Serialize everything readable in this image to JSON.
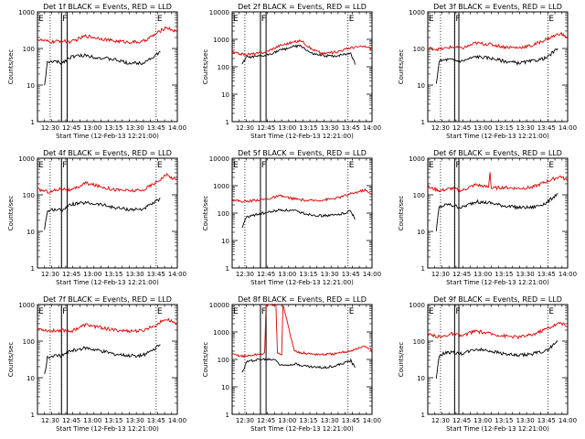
{
  "chart_data": [
    {
      "type": "line",
      "title": "Det 1f BLACK = Events, RED = LLD",
      "xlabel": "Start Time (12-Feb-13 12:21:00)",
      "ylabel": "Counts/sec",
      "yscale": "log",
      "ylim": [
        1,
        1000
      ],
      "ytick_labels": [
        "1",
        "10",
        "100",
        "1000"
      ],
      "xlim": [
        "12:21",
        "14:00"
      ],
      "xtick_labels": [
        "12:30",
        "12:45",
        "13:00",
        "13:15",
        "13:30",
        "13:45",
        "14:00"
      ],
      "region_labels": [
        {
          "text": "E",
          "t": "12:21"
        },
        {
          "text": "F",
          "t": "12:38"
        },
        {
          "text": "E",
          "t": "13:45"
        }
      ],
      "dotted_lines": [
        "12:30",
        "12:38",
        "13:45"
      ],
      "solid_lines": [
        "12:38",
        "12:42"
      ],
      "series": [
        {
          "color": "#000000",
          "t": [
            "12:26",
            "12:28",
            "12:32",
            "12:38",
            "12:45",
            "12:55",
            "13:05",
            "13:15",
            "13:25",
            "13:35",
            "13:42",
            "13:48"
          ],
          "y": [
            10,
            40,
            45,
            40,
            60,
            65,
            55,
            50,
            40,
            40,
            55,
            80
          ]
        },
        {
          "color": "#dd0000",
          "t": [
            "12:21",
            "12:30",
            "12:38",
            "12:45",
            "12:55",
            "13:05",
            "13:15",
            "13:25",
            "13:35",
            "13:45",
            "13:52",
            "14:00"
          ],
          "y": [
            175,
            150,
            160,
            150,
            220,
            190,
            160,
            150,
            150,
            250,
            380,
            280
          ]
        }
      ]
    },
    {
      "type": "line",
      "title": "Det 2f BLACK = Events, RED = LLD",
      "xlabel": "Start Time (12-Feb-13 12:21:00)",
      "ylabel": "Counts/sec",
      "yscale": "log",
      "ylim": [
        1,
        10000
      ],
      "ytick_labels": [
        "1",
        "10",
        "100",
        "1000",
        "10000"
      ],
      "xlim": [
        "12:21",
        "14:00"
      ],
      "xtick_labels": [
        "12:30",
        "12:45",
        "13:00",
        "13:15",
        "13:30",
        "13:45",
        "14:00"
      ],
      "region_labels": [
        {
          "text": "E",
          "t": "12:21"
        },
        {
          "text": "F",
          "t": "12:41"
        },
        {
          "text": "E",
          "t": "13:43"
        }
      ],
      "dotted_lines": [
        "12:30",
        "12:41",
        "13:43"
      ],
      "solid_lines": [
        "12:41",
        "12:45"
      ],
      "series": [
        {
          "color": "#000000",
          "t": [
            "12:28",
            "12:31",
            "12:38",
            "12:44",
            "12:55",
            "13:05",
            "13:10",
            "13:17",
            "13:25",
            "13:35",
            "13:45",
            "13:48"
          ],
          "y": [
            120,
            220,
            230,
            250,
            400,
            550,
            570,
            300,
            250,
            250,
            320,
            120
          ]
        },
        {
          "color": "#dd0000",
          "t": [
            "12:21",
            "12:30",
            "12:38",
            "12:45",
            "12:55",
            "13:05",
            "13:10",
            "13:17",
            "13:25",
            "13:35",
            "13:45",
            "13:55",
            "14:00"
          ],
          "y": [
            330,
            280,
            300,
            350,
            600,
            800,
            900,
            450,
            300,
            350,
            500,
            550,
            450
          ]
        }
      ]
    },
    {
      "type": "line",
      "title": "Det 3f BLACK = Events, RED = LLD",
      "xlabel": "Start Time (12-Feb-13 12:21:00)",
      "ylabel": "Counts/sec",
      "yscale": "log",
      "ylim": [
        1,
        1000
      ],
      "ytick_labels": [
        "1",
        "10",
        "100",
        "1000"
      ],
      "xlim": [
        "12:21",
        "14:00"
      ],
      "xtick_labels": [
        "12:30",
        "12:45",
        "13:00",
        "13:15",
        "13:30",
        "13:45",
        "14:00"
      ],
      "region_labels": [
        {
          "text": "E",
          "t": "12:21"
        },
        {
          "text": "F",
          "t": "12:40"
        },
        {
          "text": "E",
          "t": "13:46"
        }
      ],
      "dotted_lines": [
        "12:30",
        "12:40",
        "13:46"
      ],
      "solid_lines": [
        "12:40",
        "12:43"
      ],
      "series": [
        {
          "color": "#000000",
          "t": [
            "12:27",
            "12:29",
            "12:35",
            "12:45",
            "12:55",
            "13:05",
            "13:15",
            "13:25",
            "13:35",
            "13:45",
            "13:53"
          ],
          "y": [
            10,
            45,
            50,
            45,
            60,
            55,
            45,
            40,
            45,
            55,
            100
          ]
        },
        {
          "color": "#dd0000",
          "t": [
            "12:21",
            "12:30",
            "12:38",
            "12:45",
            "12:55",
            "13:05",
            "13:15",
            "13:25",
            "13:35",
            "13:45",
            "13:55",
            "14:00"
          ],
          "y": [
            100,
            95,
            110,
            100,
            140,
            130,
            110,
            105,
            120,
            180,
            260,
            190
          ]
        }
      ]
    },
    {
      "type": "line",
      "title": "Det 4f BLACK = Events, RED = LLD",
      "xlabel": "Start Time (12-Feb-13 12:21:00)",
      "ylabel": "Counts/sec",
      "yscale": "log",
      "ylim": [
        1,
        1000
      ],
      "ytick_labels": [
        "1",
        "10",
        "100",
        "1000"
      ],
      "xlim": [
        "12:21",
        "14:00"
      ],
      "xtick_labels": [
        "12:30",
        "12:45",
        "13:00",
        "13:15",
        "13:30",
        "13:45",
        "14:00"
      ],
      "region_labels": [
        {
          "text": "E",
          "t": "12:21"
        },
        {
          "text": "F",
          "t": "12:38"
        },
        {
          "text": "E",
          "t": "13:45"
        }
      ],
      "dotted_lines": [
        "12:30",
        "12:38",
        "13:45"
      ],
      "solid_lines": [
        "12:38",
        "12:42"
      ],
      "series": [
        {
          "color": "#000000",
          "t": [
            "12:26",
            "12:28",
            "12:32",
            "12:38",
            "12:45",
            "12:55",
            "13:05",
            "13:15",
            "13:25",
            "13:35",
            "13:42",
            "13:48"
          ],
          "y": [
            12,
            35,
            40,
            38,
            55,
            60,
            55,
            45,
            40,
            40,
            55,
            80
          ]
        },
        {
          "color": "#dd0000",
          "t": [
            "12:21",
            "12:30",
            "12:38",
            "12:45",
            "12:55",
            "13:05",
            "13:15",
            "13:25",
            "13:35",
            "13:45",
            "13:52",
            "14:00"
          ],
          "y": [
            140,
            120,
            150,
            130,
            210,
            170,
            140,
            130,
            130,
            220,
            350,
            250
          ]
        }
      ]
    },
    {
      "type": "line",
      "title": "Det 5f BLACK = Events, RED = LLD",
      "xlabel": "Start Time (12-Feb-13 12:21:00)",
      "ylabel": "Counts/sec",
      "yscale": "log",
      "ylim": [
        1,
        10000
      ],
      "ytick_labels": [
        "1",
        "10",
        "100",
        "1000",
        "10000"
      ],
      "xlim": [
        "12:21",
        "14:00"
      ],
      "xtick_labels": [
        "12:30",
        "12:45",
        "13:00",
        "13:15",
        "13:30",
        "13:45",
        "14:00"
      ],
      "region_labels": [
        {
          "text": "E",
          "t": "12:21"
        },
        {
          "text": "F",
          "t": "12:41"
        },
        {
          "text": "E",
          "t": "13:43"
        }
      ],
      "dotted_lines": [
        "12:30",
        "12:41",
        "13:43"
      ],
      "solid_lines": [
        "12:41",
        "12:45"
      ],
      "series": [
        {
          "color": "#000000",
          "t": [
            "12:28",
            "12:31",
            "12:38",
            "12:44",
            "12:55",
            "13:05",
            "13:15",
            "13:25",
            "13:35",
            "13:45",
            "13:48"
          ],
          "y": [
            30,
            70,
            90,
            100,
            130,
            120,
            90,
            80,
            85,
            120,
            60
          ]
        },
        {
          "color": "#dd0000",
          "t": [
            "12:21",
            "12:30",
            "12:38",
            "12:45",
            "12:55",
            "13:05",
            "13:15",
            "13:25",
            "13:35",
            "13:45",
            "13:55",
            "14:00"
          ],
          "y": [
            300,
            260,
            300,
            320,
            420,
            330,
            280,
            300,
            350,
            500,
            700,
            450
          ]
        }
      ]
    },
    {
      "type": "line",
      "title": "Det 6f BLACK = Events, RED = LLD",
      "xlabel": "Start Time (12-Feb-13 12:21:00)",
      "ylabel": "Counts/sec",
      "yscale": "log",
      "ylim": [
        1,
        1000
      ],
      "ytick_labels": [
        "1",
        "10",
        "100",
        "1000"
      ],
      "xlim": [
        "12:21",
        "14:00"
      ],
      "xtick_labels": [
        "12:30",
        "12:45",
        "13:00",
        "13:15",
        "13:30",
        "13:45",
        "14:00"
      ],
      "region_labels": [
        {
          "text": "E",
          "t": "12:21"
        },
        {
          "text": "F",
          "t": "12:40"
        },
        {
          "text": "E",
          "t": "13:46"
        }
      ],
      "dotted_lines": [
        "12:30",
        "12:40",
        "13:46"
      ],
      "solid_lines": [
        "12:40",
        "12:43"
      ],
      "series": [
        {
          "color": "#000000",
          "t": [
            "12:27",
            "12:29",
            "12:35",
            "12:45",
            "12:55",
            "13:05",
            "13:15",
            "13:25",
            "13:35",
            "13:45",
            "13:53"
          ],
          "y": [
            10,
            45,
            55,
            45,
            65,
            60,
            50,
            45,
            45,
            60,
            110
          ]
        },
        {
          "color": "#dd0000",
          "t": [
            "12:21",
            "12:30",
            "12:38",
            "12:45",
            "12:55",
            "13:04",
            "13:05",
            "13:06",
            "13:15",
            "13:25",
            "13:35",
            "13:45",
            "13:55",
            "14:00"
          ],
          "y": [
            160,
            130,
            150,
            130,
            190,
            160,
            420,
            150,
            160,
            150,
            160,
            230,
            320,
            240
          ]
        }
      ]
    },
    {
      "type": "line",
      "title": "Det 7f BLACK = Events, RED = LLD",
      "xlabel": "Start Time (12-Feb-13 12:21:00)",
      "ylabel": "Counts/sec",
      "yscale": "log",
      "ylim": [
        1,
        1000
      ],
      "ytick_labels": [
        "1",
        "10",
        "100",
        "1000"
      ],
      "xlim": [
        "12:21",
        "14:00"
      ],
      "xtick_labels": [
        "12:30",
        "12:45",
        "13:00",
        "13:15",
        "13:30",
        "13:45",
        "14:00"
      ],
      "region_labels": [
        {
          "text": "E",
          "t": "12:21"
        },
        {
          "text": "F",
          "t": "12:38"
        },
        {
          "text": "E",
          "t": "13:45"
        }
      ],
      "dotted_lines": [
        "12:30",
        "12:38",
        "13:45"
      ],
      "solid_lines": [
        "12:38",
        "12:42"
      ],
      "series": [
        {
          "color": "#000000",
          "t": [
            "12:26",
            "12:28",
            "12:32",
            "12:38",
            "12:45",
            "12:55",
            "13:05",
            "13:15",
            "13:25",
            "13:35",
            "13:42",
            "13:48"
          ],
          "y": [
            12,
            35,
            40,
            40,
            55,
            65,
            55,
            45,
            40,
            40,
            55,
            80
          ]
        },
        {
          "color": "#dd0000",
          "t": [
            "12:21",
            "12:30",
            "12:38",
            "12:45",
            "12:55",
            "13:05",
            "13:15",
            "13:25",
            "13:35",
            "13:45",
            "13:52",
            "14:00"
          ],
          "y": [
            220,
            190,
            200,
            190,
            280,
            240,
            200,
            190,
            190,
            280,
            400,
            300
          ]
        }
      ]
    },
    {
      "type": "line",
      "title": "Det 8f BLACK = Events, RED = LLD",
      "xlabel": "Start Time (12-Feb-13 12:21:00)",
      "ylabel": "Counts/sec",
      "yscale": "log",
      "ylim": [
        1,
        10000
      ],
      "ytick_labels": [
        "1",
        "10",
        "100",
        "1000",
        "10000"
      ],
      "xlim": [
        "12:21",
        "14:00"
      ],
      "xtick_labels": [
        "12:30",
        "12:45",
        "13:00",
        "13:15",
        "13:30",
        "13:45",
        "14:00"
      ],
      "region_labels": [
        {
          "text": "E",
          "t": "12:21"
        },
        {
          "text": "F",
          "t": "12:41"
        },
        {
          "text": "E",
          "t": "13:43"
        }
      ],
      "dotted_lines": [
        "12:30",
        "12:41",
        "13:43"
      ],
      "solid_lines": [
        "12:41",
        "12:45"
      ],
      "series": [
        {
          "color": "#000000",
          "t": [
            "12:28",
            "12:31",
            "12:38",
            "12:44",
            "12:45",
            "12:52",
            "12:55",
            "13:05",
            "13:15",
            "13:25",
            "13:35",
            "13:45",
            "13:48"
          ],
          "y": [
            30,
            80,
            100,
            100,
            100,
            100,
            60,
            70,
            55,
            50,
            60,
            90,
            50
          ]
        },
        {
          "color": "#dd0000",
          "t": [
            "12:21",
            "12:30",
            "12:38",
            "12:44",
            "12:45",
            "12:52",
            "12:53",
            "12:56",
            "12:57",
            "13:05",
            "13:15",
            "13:25",
            "13:35",
            "13:45",
            "13:55",
            "14:00"
          ],
          "y": [
            150,
            130,
            150,
            160,
            10000,
            10000,
            160,
            160,
            10000,
            200,
            160,
            150,
            160,
            210,
            300,
            220
          ]
        }
      ]
    },
    {
      "type": "line",
      "title": "Det 9f BLACK = Events, RED = LLD",
      "xlabel": "Start Time (12-Feb-13 12:21:00)",
      "ylabel": "Counts/sec",
      "yscale": "log",
      "ylim": [
        1,
        1000
      ],
      "ytick_labels": [
        "1",
        "10",
        "100",
        "1000"
      ],
      "xlim": [
        "12:21",
        "14:00"
      ],
      "xtick_labels": [
        "12:30",
        "12:45",
        "13:00",
        "13:15",
        "13:30",
        "13:45",
        "14:00"
      ],
      "region_labels": [
        {
          "text": "E",
          "t": "12:21"
        },
        {
          "text": "F",
          "t": "12:40"
        },
        {
          "text": "E",
          "t": "13:46"
        }
      ],
      "dotted_lines": [
        "12:30",
        "12:40",
        "13:46"
      ],
      "solid_lines": [
        "12:40",
        "12:43"
      ],
      "series": [
        {
          "color": "#000000",
          "t": [
            "12:27",
            "12:29",
            "12:35",
            "12:45",
            "12:55",
            "13:05",
            "13:15",
            "13:25",
            "13:35",
            "13:45",
            "13:53"
          ],
          "y": [
            10,
            40,
            50,
            45,
            60,
            55,
            45,
            40,
            45,
            55,
            100
          ]
        },
        {
          "color": "#dd0000",
          "t": [
            "12:21",
            "12:30",
            "12:38",
            "12:45",
            "12:55",
            "13:05",
            "13:15",
            "13:25",
            "13:35",
            "13:45",
            "13:55",
            "14:00"
          ],
          "y": [
            150,
            130,
            160,
            140,
            190,
            160,
            140,
            130,
            150,
            220,
            320,
            240
          ]
        }
      ]
    }
  ]
}
